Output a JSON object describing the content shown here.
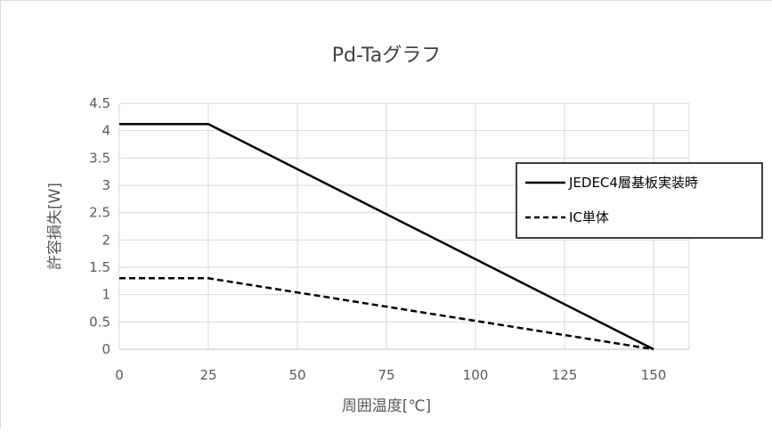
{
  "chart_data": {
    "type": "line",
    "title": "Pd-Taグラフ",
    "xlabel": "周囲温度[℃]",
    "ylabel": "許容損失[W]",
    "xlim": [
      0,
      160
    ],
    "ylim": [
      0,
      4.5
    ],
    "x_ticks": [
      "0",
      "25",
      "50",
      "75",
      "100",
      "125",
      "150"
    ],
    "y_ticks": [
      "0",
      "0.5",
      "1",
      "1.5",
      "2",
      "2.5",
      "3",
      "3.5",
      "4",
      "4.5"
    ],
    "grid": true,
    "legend_position": "right",
    "series": [
      {
        "name": "JEDEC4層基板実装時",
        "style": "solid",
        "color": "#000000",
        "points": [
          [
            0,
            4.12
          ],
          [
            25,
            4.12
          ],
          [
            150,
            0
          ]
        ]
      },
      {
        "name": "IC単体",
        "style": "dashed",
        "color": "#000000",
        "points": [
          [
            0,
            1.3
          ],
          [
            25,
            1.3
          ],
          [
            150,
            0
          ]
        ]
      }
    ]
  }
}
